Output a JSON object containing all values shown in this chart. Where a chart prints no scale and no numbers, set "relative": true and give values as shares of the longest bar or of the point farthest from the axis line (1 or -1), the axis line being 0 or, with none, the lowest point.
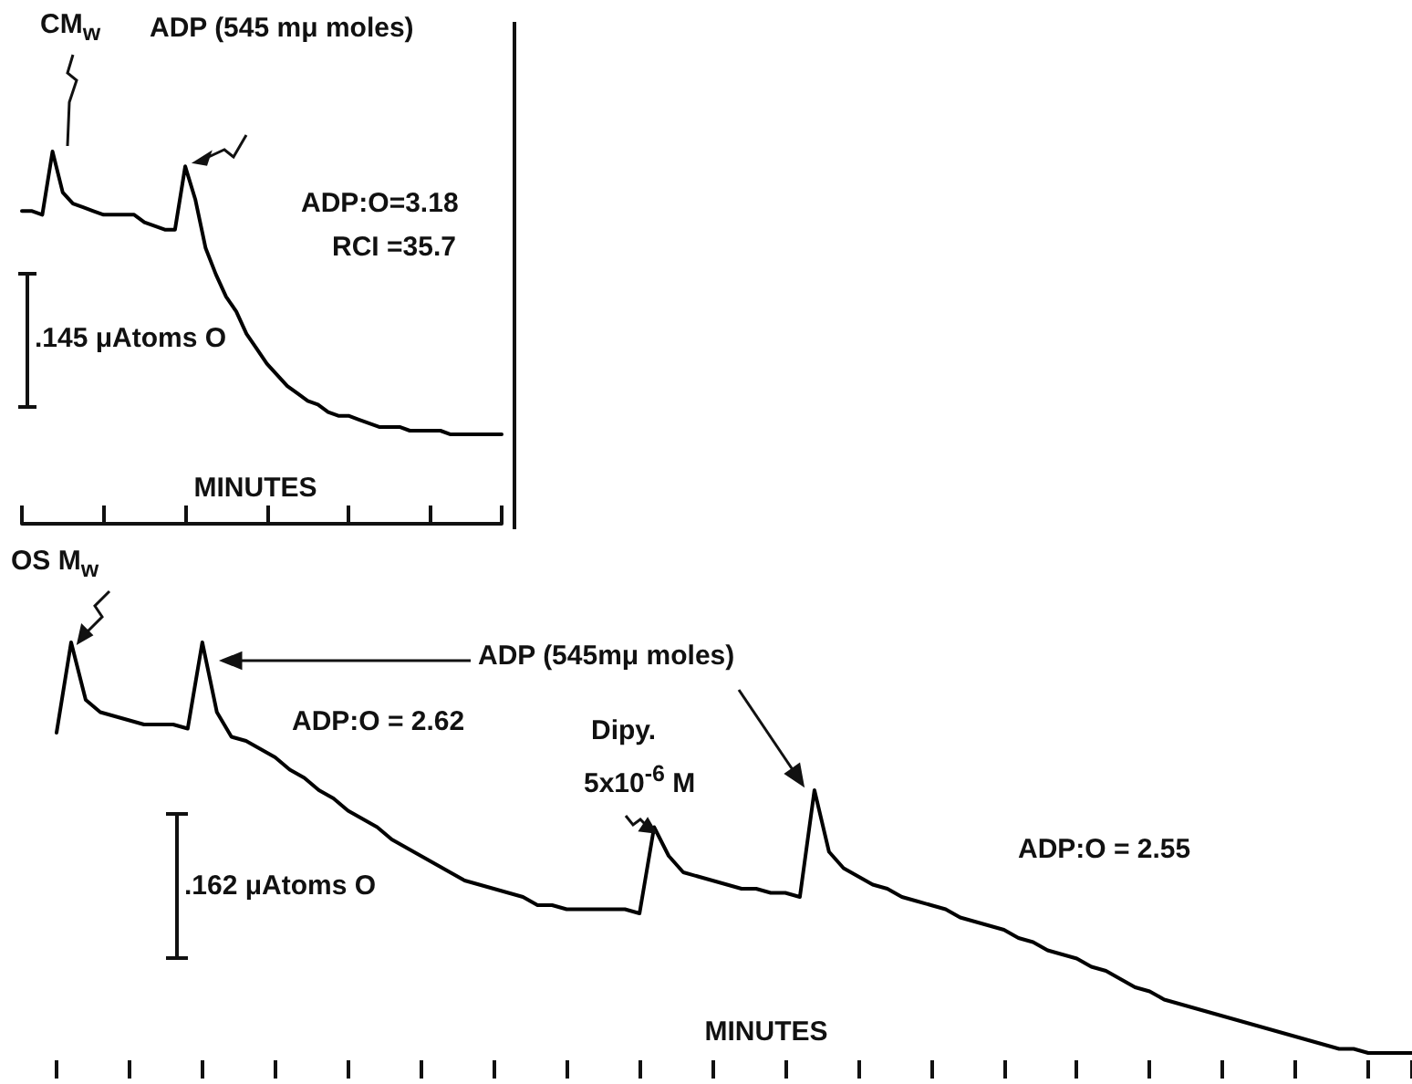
{
  "chart_data": [
    {
      "type": "line",
      "relative": true,
      "xlabel": "MINUTES",
      "tick_labels": false,
      "line_style": "solid",
      "annotations": [
        "CM$_{w}$",
        "ADP (545 mμ moles)",
        "ADP:O=3.18",
        "RCI =35.7",
        ".145 μAtoms O"
      ],
      "categories": [
        null,
        null,
        null,
        null,
        null,
        null,
        null,
        null,
        null,
        null,
        null,
        null,
        null,
        null,
        null,
        null,
        null,
        null,
        null,
        null,
        null,
        null,
        null,
        null,
        null,
        null,
        null,
        null,
        null,
        null,
        null,
        null,
        null,
        null,
        null,
        null,
        null,
        null,
        null,
        null,
        null,
        null,
        null,
        null,
        null,
        null,
        null,
        null
      ],
      "series": [
        {
          "color": "#000000",
          "values": [
            0.84,
            0.84,
            0.83,
            1,
            0.89,
            0.86,
            0.85,
            0.84,
            0.83,
            0.83,
            0.83,
            0.83,
            0.81,
            0.8,
            0.79,
            0.79,
            0.96,
            0.87,
            0.74,
            0.67,
            0.61,
            0.57,
            0.51,
            0.47,
            0.43,
            0.4,
            0.37,
            0.35,
            0.33,
            0.32,
            0.3,
            0.29,
            0.29,
            0.28,
            0.27,
            0.26,
            0.26,
            0.26,
            0.25,
            0.25,
            0.25,
            0.25,
            0.24,
            0.24,
            0.24,
            0.24,
            0.24,
            0.24
          ]
        }
      ]
    },
    {
      "type": "line",
      "relative": true,
      "xlabel": "MINUTES",
      "tick_labels": false,
      "line_style": "solid",
      "annotations": [
        "OS M$_{w}$",
        "ADP (545mμ moles)",
        "ADP:O = 2.62",
        "Dipy.",
        "5x10$^{-6}$ M",
        "ADP:O = 2.55",
        ".162 μAtoms O"
      ],
      "categories": [
        null,
        null,
        null,
        null,
        null,
        null,
        null,
        null,
        null,
        null,
        null,
        null,
        null,
        null,
        null,
        null,
        null,
        null,
        null,
        null,
        null,
        null,
        null,
        null,
        null,
        null,
        null,
        null,
        null,
        null,
        null,
        null,
        null,
        null,
        null,
        null,
        null,
        null,
        null,
        null,
        null,
        null,
        null,
        null,
        null,
        null,
        null,
        null,
        null,
        null,
        null,
        null,
        null,
        null,
        null,
        null,
        null,
        null,
        null,
        null,
        null,
        null,
        null,
        null,
        null,
        null,
        null,
        null,
        null,
        null,
        null,
        null,
        null,
        null,
        null,
        null,
        null,
        null,
        null,
        null,
        null,
        null,
        null,
        null,
        null,
        null,
        null,
        null,
        null,
        null,
        null,
        null,
        null,
        null
      ],
      "series": [
        {
          "color": "#000000",
          "values": [
            0.78,
            1,
            0.86,
            0.83,
            0.82,
            0.81,
            0.8,
            0.8,
            0.8,
            0.79,
            1,
            0.83,
            0.77,
            0.76,
            0.74,
            0.72,
            0.69,
            0.67,
            0.64,
            0.62,
            0.59,
            0.57,
            0.55,
            0.52,
            0.5,
            0.48,
            0.46,
            0.44,
            0.42,
            0.41,
            0.4,
            0.39,
            0.38,
            0.36,
            0.36,
            0.35,
            0.35,
            0.35,
            0.35,
            0.35,
            0.34,
            0.55,
            0.48,
            0.44,
            0.43,
            0.42,
            0.41,
            0.4,
            0.4,
            0.39,
            0.39,
            0.38,
            0.64,
            0.49,
            0.45,
            0.43,
            0.41,
            0.4,
            0.38,
            0.37,
            0.36,
            0.35,
            0.33,
            0.32,
            0.31,
            0.3,
            0.28,
            0.27,
            0.25,
            0.24,
            0.23,
            0.21,
            0.2,
            0.18,
            0.16,
            0.15,
            0.13,
            0.12,
            0.11,
            0.1,
            0.09,
            0.08,
            0.07,
            0.06,
            0.05,
            0.04,
            0.03,
            0.02,
            0.01,
            0.01,
            0,
            0,
            0,
            0
          ]
        }
      ]
    }
  ]
}
